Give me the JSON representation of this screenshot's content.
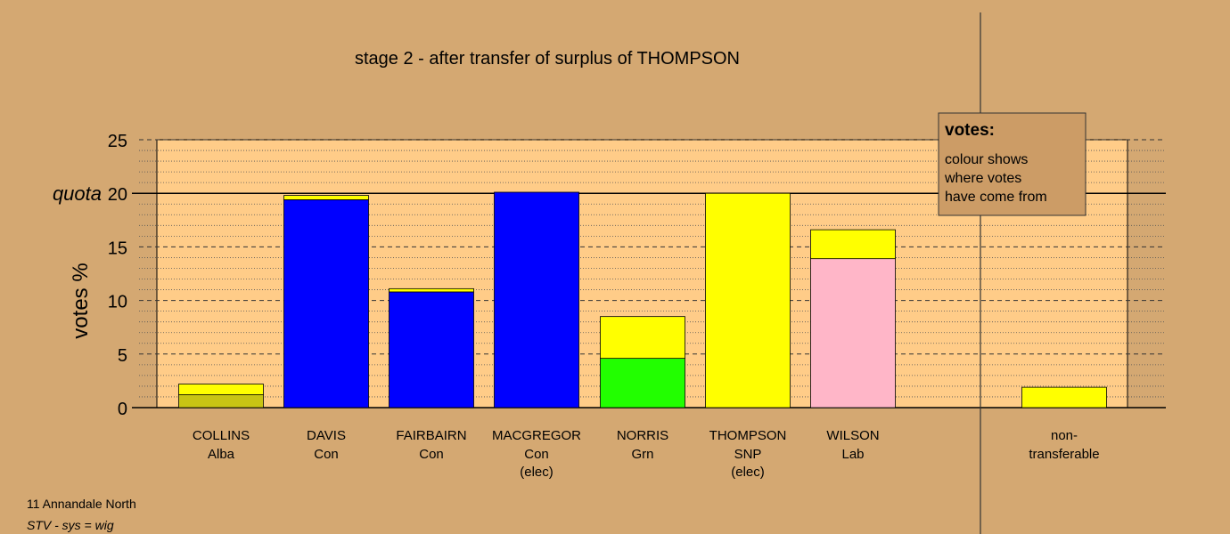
{
  "chart_data": {
    "type": "bar",
    "title": "stage 2 - after transfer of surplus of THOMPSON",
    "ylabel": "votes %",
    "ylim": [
      0,
      25
    ],
    "yticks": [
      0,
      5,
      10,
      15,
      20,
      25
    ],
    "quota": {
      "value": 20,
      "label": "quota"
    },
    "grid": true,
    "candidates": [
      {
        "name": "COLLINS",
        "party": "Alba",
        "note": "",
        "segments": [
          {
            "value": 1.2,
            "color": "#c8c414"
          },
          {
            "value": 1.0,
            "color": "#ffff00"
          }
        ]
      },
      {
        "name": "DAVIS",
        "party": "Con",
        "note": "",
        "segments": [
          {
            "value": 19.4,
            "color": "#0000ff"
          },
          {
            "value": 0.4,
            "color": "#ffff00"
          }
        ]
      },
      {
        "name": "FAIRBAIRN",
        "party": "Con",
        "note": "",
        "segments": [
          {
            "value": 10.8,
            "color": "#0000ff"
          },
          {
            "value": 0.3,
            "color": "#ffff00"
          }
        ]
      },
      {
        "name": "MACGREGOR",
        "party": "Con",
        "note": "(elec)",
        "segments": [
          {
            "value": 20.1,
            "color": "#0000ff"
          }
        ]
      },
      {
        "name": "NORRIS",
        "party": "Grn",
        "note": "",
        "segments": [
          {
            "value": 4.6,
            "color": "#22ff00"
          },
          {
            "value": 3.9,
            "color": "#ffff00"
          }
        ]
      },
      {
        "name": "THOMPSON",
        "party": "SNP",
        "note": "(elec)",
        "segments": [
          {
            "value": 20.0,
            "color": "#ffff00"
          }
        ]
      },
      {
        "name": "WILSON",
        "party": "Lab",
        "note": "",
        "segments": [
          {
            "value": 13.9,
            "color": "#ffb6c8"
          },
          {
            "value": 2.7,
            "color": "#ffff00"
          }
        ]
      }
    ],
    "nontransferable": {
      "label_line1": "non-",
      "label_line2": "transferable",
      "value": 1.9,
      "color": "#ffff00"
    },
    "legend": {
      "title": "votes:",
      "lines": [
        "colour shows",
        "where votes",
        "have come from"
      ],
      "position": "top-right"
    }
  },
  "footer": {
    "line1": "11 Annandale North",
    "line2": "STV - sys = wig"
  },
  "colors": {
    "background": "#d4a872",
    "plot_area": "#ffcc88"
  }
}
